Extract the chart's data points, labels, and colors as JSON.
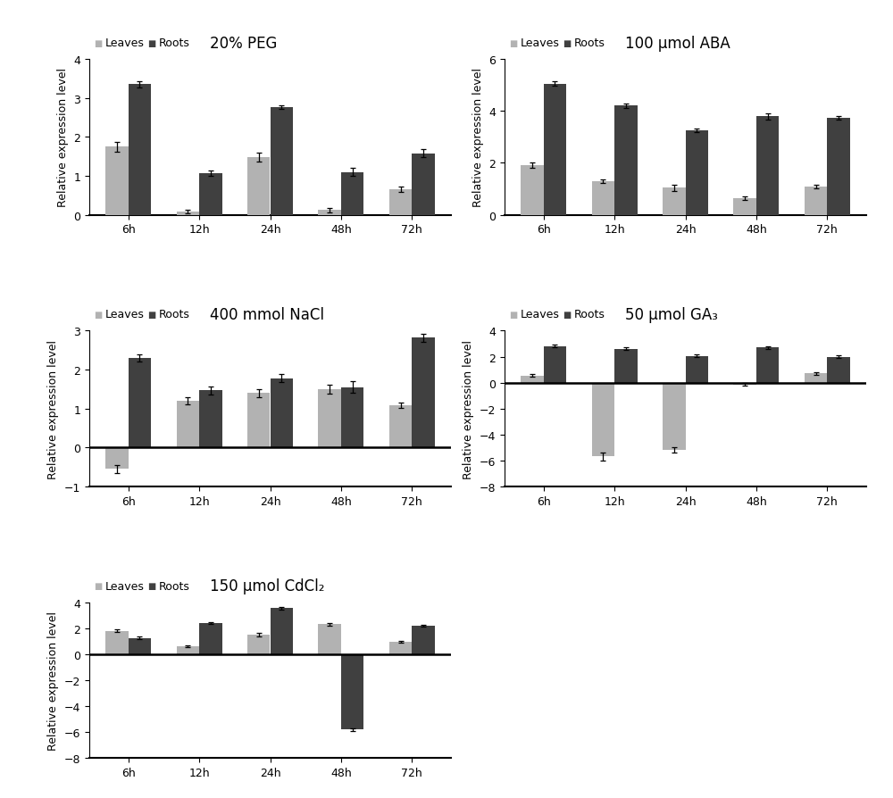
{
  "panels": [
    {
      "title": "20% PEG",
      "categories": [
        "6h",
        "12h",
        "24h",
        "48h",
        "72h"
      ],
      "leaves": [
        1.75,
        0.08,
        1.48,
        0.12,
        0.65
      ],
      "roots": [
        3.35,
        1.07,
        2.77,
        1.1,
        1.58
      ],
      "leaves_err": [
        0.12,
        0.05,
        0.12,
        0.05,
        0.07
      ],
      "roots_err": [
        0.08,
        0.06,
        0.05,
        0.1,
        0.1
      ],
      "ylim": [
        0,
        4
      ],
      "yticks": [
        0,
        1,
        2,
        3,
        4
      ],
      "has_zero_line": false
    },
    {
      "title": "100 μmol ABA",
      "categories": [
        "6h",
        "12h",
        "24h",
        "48h",
        "72h"
      ],
      "leaves": [
        1.9,
        1.3,
        1.05,
        0.65,
        1.1
      ],
      "roots": [
        5.05,
        4.2,
        3.25,
        3.8,
        3.75
      ],
      "leaves_err": [
        0.1,
        0.07,
        0.12,
        0.07,
        0.07
      ],
      "roots_err": [
        0.08,
        0.08,
        0.07,
        0.12,
        0.07
      ],
      "ylim": [
        0,
        6
      ],
      "yticks": [
        0,
        2,
        4,
        6
      ],
      "has_zero_line": false
    },
    {
      "title": "400 mmol NaCl",
      "categories": [
        "6h",
        "12h",
        "24h",
        "48h",
        "72h"
      ],
      "leaves": [
        -0.55,
        1.2,
        1.4,
        1.5,
        1.08
      ],
      "roots": [
        2.3,
        1.47,
        1.78,
        1.55,
        2.82
      ],
      "leaves_err": [
        0.1,
        0.1,
        0.1,
        0.12,
        0.07
      ],
      "roots_err": [
        0.1,
        0.1,
        0.1,
        0.15,
        0.1
      ],
      "ylim": [
        -1,
        3
      ],
      "yticks": [
        -1,
        0,
        1,
        2,
        3
      ],
      "has_zero_line": true
    },
    {
      "title": "50 μmol GA₃",
      "categories": [
        "6h",
        "12h",
        "24h",
        "48h",
        "72h"
      ],
      "leaves": [
        0.55,
        -5.7,
        -5.2,
        -0.15,
        0.7
      ],
      "roots": [
        2.8,
        2.6,
        2.05,
        2.7,
        2.0
      ],
      "leaves_err": [
        0.1,
        0.3,
        0.2,
        0.1,
        0.1
      ],
      "roots_err": [
        0.1,
        0.1,
        0.1,
        0.1,
        0.1
      ],
      "ylim": [
        -8,
        4
      ],
      "yticks": [
        -8,
        -6,
        -4,
        -2,
        0,
        2,
        4
      ],
      "has_zero_line": true
    },
    {
      "title": "150 μmol CdCl₂",
      "categories": [
        "6h",
        "12h",
        "24h",
        "48h",
        "72h"
      ],
      "leaves": [
        1.8,
        0.62,
        1.52,
        2.32,
        0.97
      ],
      "roots": [
        1.25,
        2.4,
        3.55,
        -5.8,
        2.2
      ],
      "leaves_err": [
        0.1,
        0.07,
        0.12,
        0.1,
        0.07
      ],
      "roots_err": [
        0.1,
        0.07,
        0.1,
        0.12,
        0.07
      ],
      "ylim": [
        -8,
        4
      ],
      "yticks": [
        -8,
        -6,
        -4,
        -2,
        0,
        2,
        4
      ],
      "has_zero_line": true
    }
  ],
  "leaves_color": "#b2b2b2",
  "roots_color": "#404040",
  "bar_width": 0.32,
  "ylabel": "Relative expression level",
  "fontsize_title": 12,
  "fontsize_label": 9,
  "fontsize_tick": 9,
  "fontsize_legend": 9
}
